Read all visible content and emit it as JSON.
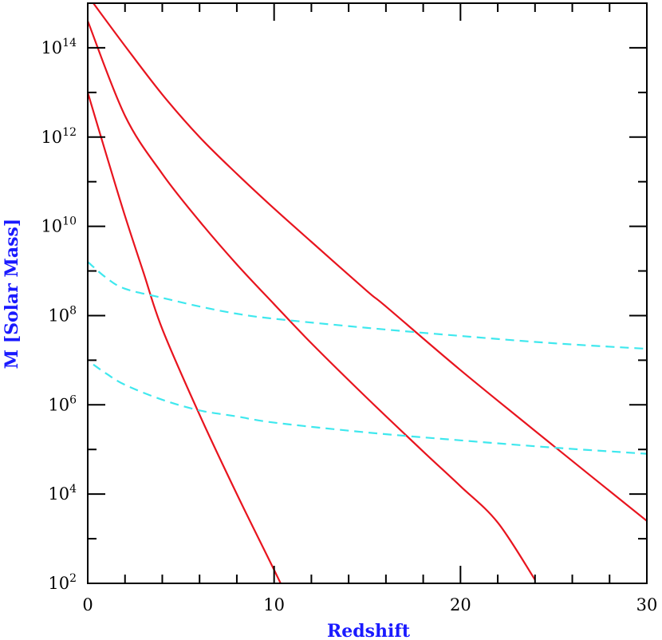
{
  "chart_data": {
    "type": "line",
    "title": "",
    "xlabel": "Redshift",
    "ylabel": "M [Solar Mass]",
    "xlim": [
      0,
      30
    ],
    "ylim": [
      100,
      1000000000000000
    ],
    "yscale": "log",
    "grid": false,
    "legend": "none",
    "x_ticks": [
      {
        "value": 0,
        "label": "0"
      },
      {
        "value": 10,
        "label": "10"
      },
      {
        "value": 20,
        "label": "20"
      },
      {
        "value": 30,
        "label": "30"
      }
    ],
    "y_ticks": [
      {
        "value": 2,
        "base": "10",
        "exp": "2"
      },
      {
        "value": 4,
        "base": "10",
        "exp": "4"
      },
      {
        "value": 6,
        "base": "10",
        "exp": "6"
      },
      {
        "value": 8,
        "base": "10",
        "exp": "8"
      },
      {
        "value": 10,
        "base": "10",
        "exp": "10"
      },
      {
        "value": 12,
        "base": "10",
        "exp": "12"
      },
      {
        "value": 14,
        "base": "10",
        "exp": "14"
      }
    ],
    "colors": {
      "solid": "#e8141e",
      "dashed": "#3fe8ee",
      "axis_title": "#1a1aff"
    },
    "series": [
      {
        "style": "solid",
        "color": "#e8141e",
        "x": [
          0,
          1,
          2,
          3,
          4,
          6,
          8,
          10,
          11.5
        ],
        "y": [
          10000000000000.0,
          400000000000.0,
          17000000000.0,
          900000000.0,
          50000000.0,
          600000.0,
          10000.0,
          200.0,
          10.0
        ]
      },
      {
        "style": "solid",
        "color": "#e8141e",
        "x": [
          0,
          2,
          4,
          6,
          8,
          10,
          12,
          15,
          18,
          20,
          22,
          24
        ],
        "y": [
          400000000000000.0,
          3000000000000.0,
          150000000000.0,
          13000000000.0,
          1400000000.0,
          180000000.0,
          24000000.0,
          1400000.0,
          90000.0,
          15000.0,
          2300.0,
          120.0
        ]
      },
      {
        "style": "solid",
        "color": "#e8141e",
        "x": [
          0.3,
          2,
          4,
          6,
          8,
          10,
          12,
          15,
          16,
          20,
          25,
          30
        ],
        "y": [
          1000000000000000.0,
          110000000000000.0,
          9000000000000.0,
          1000000000000.0,
          150000000000.0,
          25000000000.0,
          4500000000.0,
          350000000.0,
          160000000.0,
          6000000.0,
          120000.0,
          2500.0
        ]
      },
      {
        "style": "dashed",
        "color": "#3fe8ee",
        "x": [
          0,
          1,
          2,
          4,
          6,
          8,
          10,
          15,
          20,
          25,
          30
        ],
        "y": [
          1600000000.0,
          700000000.0,
          400000000.0,
          250000000.0,
          160000000.0,
          110000000.0,
          85000000.0,
          53000000.0,
          35000000.0,
          24000000.0,
          18000000.0
        ]
      },
      {
        "style": "dashed",
        "color": "#3fe8ee",
        "x": [
          0.3,
          1,
          2,
          4,
          6,
          8,
          10,
          15,
          20,
          25,
          30
        ],
        "y": [
          8000000.0,
          5000000.0,
          2800000.0,
          1300000.0,
          750000.0,
          550000.0,
          400000.0,
          240000.0,
          160000.0,
          110000.0,
          80000.0
        ]
      }
    ]
  }
}
